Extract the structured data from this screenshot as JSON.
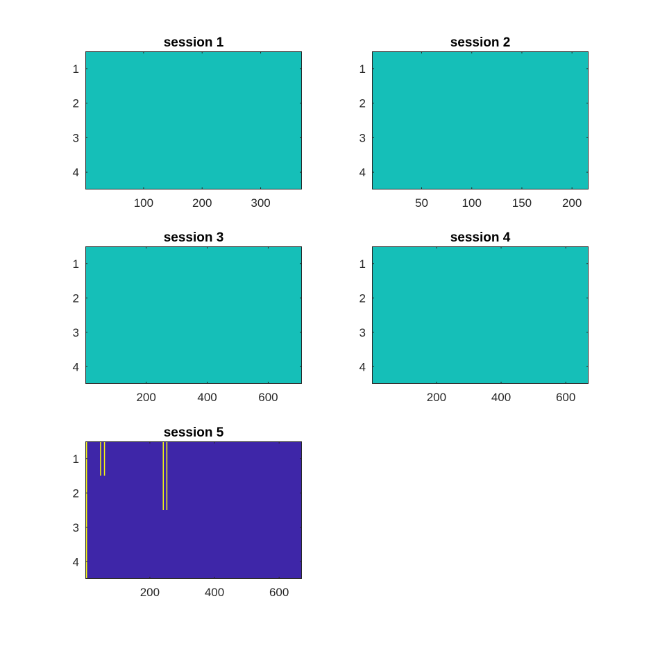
{
  "colors": {
    "low": "#3e26a8",
    "mid": "#15bfb8",
    "high": "#f9fb0e",
    "axis": "#262626"
  },
  "chart_data": [
    {
      "type": "heatmap",
      "title": "session 1",
      "xlim": [
        0.5,
        370.5
      ],
      "ylim": [
        0.5,
        4.5
      ],
      "xticks": [
        100,
        200,
        300
      ],
      "xtick_labels": [
        "100",
        "200",
        "300"
      ],
      "yticks": [
        1,
        2,
        3,
        4
      ],
      "ytick_labels": [
        "1",
        "2",
        "3",
        "4"
      ],
      "base_color": "mid",
      "patches": []
    },
    {
      "type": "heatmap",
      "title": "session 2",
      "xlim": [
        0.5,
        216.5
      ],
      "ylim": [
        0.5,
        4.5
      ],
      "xticks": [
        50,
        100,
        150,
        200
      ],
      "xtick_labels": [
        "50",
        "100",
        "150",
        "200"
      ],
      "yticks": [
        1,
        2,
        3,
        4
      ],
      "ytick_labels": [
        "1",
        "2",
        "3",
        "4"
      ],
      "base_color": "mid",
      "patches": []
    },
    {
      "type": "heatmap",
      "title": "session 3",
      "xlim": [
        0.5,
        710.5
      ],
      "ylim": [
        0.5,
        4.5
      ],
      "xticks": [
        200,
        400,
        600
      ],
      "xtick_labels": [
        "200",
        "400",
        "600"
      ],
      "yticks": [
        1,
        2,
        3,
        4
      ],
      "ytick_labels": [
        "1",
        "2",
        "3",
        "4"
      ],
      "base_color": "mid",
      "patches": []
    },
    {
      "type": "heatmap",
      "title": "session 4",
      "xlim": [
        0.5,
        670.5
      ],
      "ylim": [
        0.5,
        4.5
      ],
      "xticks": [
        200,
        400,
        600
      ],
      "xtick_labels": [
        "200",
        "400",
        "600"
      ],
      "yticks": [
        1,
        2,
        3,
        4
      ],
      "ytick_labels": [
        "1",
        "2",
        "3",
        "4"
      ],
      "base_color": "mid",
      "patches": []
    },
    {
      "type": "heatmap",
      "title": "session 5",
      "xlim": [
        0.5,
        670.5
      ],
      "ylim": [
        0.5,
        4.5
      ],
      "xticks": [
        200,
        400,
        600
      ],
      "xtick_labels": [
        "200",
        "400",
        "600"
      ],
      "yticks": [
        1,
        2,
        3,
        4
      ],
      "ytick_labels": [
        "1",
        "2",
        "3",
        "4"
      ],
      "base_color": "low",
      "patches": [
        {
          "color": "high",
          "x": [
            2.5,
            4.5
          ],
          "y": [
            0.5,
            4.5
          ]
        },
        {
          "color": "high",
          "x": [
            46,
            47
          ],
          "y": [
            0.5,
            1.5
          ]
        },
        {
          "color": "high",
          "x": [
            58,
            59
          ],
          "y": [
            0.5,
            1.5
          ]
        },
        {
          "color": "high",
          "x": [
            240,
            241
          ],
          "y": [
            0.5,
            2.5
          ]
        },
        {
          "color": "high",
          "x": [
            251,
            252
          ],
          "y": [
            0.5,
            2.5
          ]
        }
      ]
    }
  ]
}
